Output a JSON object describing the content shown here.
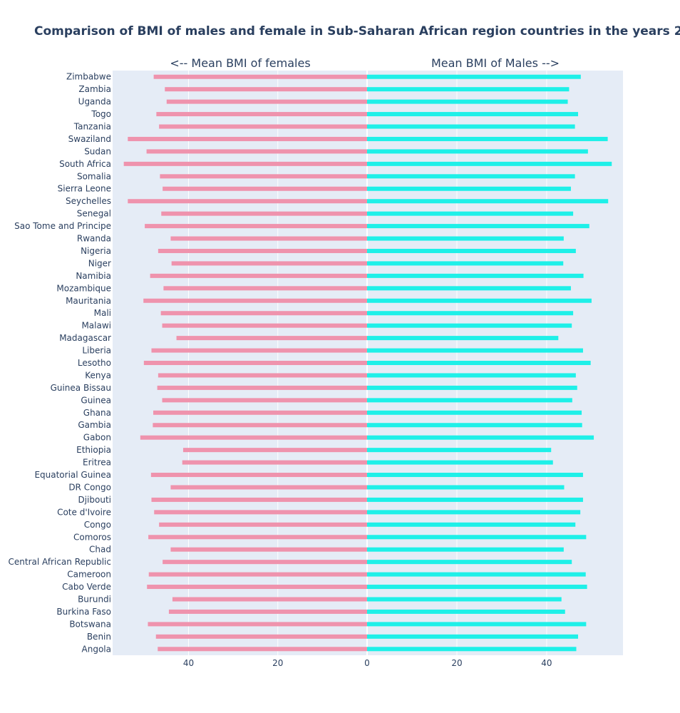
{
  "chart_data": {
    "type": "bar",
    "orientation": "horizontal",
    "title": "Comparison of BMI of males and female in Sub-Saharan African region countries in the years 2",
    "left_title": "<-- Mean BMI of females",
    "right_title": "Mean BMI of Males -->",
    "colors": {
      "female": "#ef93ad",
      "male": "#1ef0e8",
      "plot_bg": "#e5ecf6",
      "text": "#2a3f5f"
    },
    "xlim_female": [
      57,
      0
    ],
    "xlim_male": [
      0,
      57
    ],
    "x_ticks_female": [
      40,
      20,
      0
    ],
    "x_ticks_male": [
      20,
      40
    ],
    "grid": true,
    "categories": [
      "Zimbabwe",
      "Zambia",
      "Uganda",
      "Togo",
      "Tanzania",
      "Swaziland",
      "Sudan",
      "South Africa",
      "Somalia",
      "Sierra Leone",
      "Seychelles",
      "Senegal",
      "Sao Tome and Principe",
      "Rwanda",
      "Nigeria",
      "Niger",
      "Namibia",
      "Mozambique",
      "Mauritania",
      "Mali",
      "Malawi",
      "Madagascar",
      "Liberia",
      "Lesotho",
      "Kenya",
      "Guinea Bissau",
      "Guinea",
      "Ghana",
      "Gambia",
      "Gabon",
      "Ethiopia",
      "Eritrea",
      "Equatorial Guinea",
      "DR Congo",
      "Djibouti",
      "Cote d'Ivoire",
      "Congo",
      "Comoros",
      "Chad",
      "Central African Republic",
      "Cameroon",
      "Cabo Verde",
      "Burundi",
      "Burkina Faso",
      "Botswana",
      "Benin",
      "Angola"
    ],
    "series": [
      {
        "name": "Mean BMI of females",
        "values": [
          47.8,
          45.3,
          44.9,
          47.2,
          46.6,
          53.6,
          49.4,
          54.5,
          46.4,
          45.8,
          53.6,
          46.1,
          49.8,
          44.0,
          46.8,
          43.8,
          48.6,
          45.6,
          50.1,
          46.2,
          45.9,
          42.7,
          48.3,
          50.0,
          46.8,
          47.0,
          45.9,
          47.9,
          48.0,
          50.8,
          41.2,
          41.4,
          48.4,
          44.0,
          48.3,
          47.7,
          46.6,
          49.0,
          44.0,
          45.8,
          48.9,
          49.3,
          43.6,
          44.4,
          49.1,
          47.3,
          46.9
        ]
      },
      {
        "name": "Mean BMI of Males",
        "values": [
          47.6,
          45.0,
          44.7,
          47.0,
          46.3,
          53.6,
          49.2,
          54.5,
          46.3,
          45.4,
          53.7,
          45.9,
          49.5,
          43.8,
          46.5,
          43.7,
          48.2,
          45.4,
          50.0,
          45.9,
          45.6,
          42.6,
          48.1,
          49.8,
          46.5,
          46.8,
          45.7,
          47.8,
          47.9,
          50.5,
          41.0,
          41.4,
          48.1,
          43.9,
          48.1,
          47.5,
          46.4,
          48.8,
          43.8,
          45.6,
          48.7,
          49.0,
          43.3,
          44.1,
          48.8,
          47.0,
          46.6
        ]
      }
    ]
  }
}
